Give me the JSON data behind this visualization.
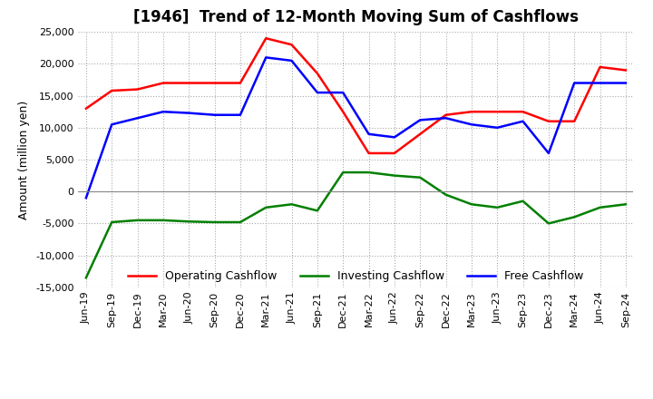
{
  "title": "[1946]  Trend of 12-Month Moving Sum of Cashflows",
  "ylabel": "Amount (million yen)",
  "ylim": [
    -15000,
    25000
  ],
  "yticks": [
    -15000,
    -10000,
    -5000,
    0,
    5000,
    10000,
    15000,
    20000,
    25000
  ],
  "x_labels": [
    "Jun-19",
    "Sep-19",
    "Dec-19",
    "Mar-20",
    "Jun-20",
    "Sep-20",
    "Dec-20",
    "Mar-21",
    "Jun-21",
    "Sep-21",
    "Dec-21",
    "Mar-22",
    "Jun-22",
    "Sep-22",
    "Dec-22",
    "Mar-23",
    "Jun-23",
    "Sep-23",
    "Dec-23",
    "Mar-24",
    "Jun-24",
    "Sep-24"
  ],
  "operating": [
    13000,
    15800,
    16000,
    17000,
    17000,
    17000,
    17000,
    24000,
    23000,
    18500,
    12500,
    6000,
    6000,
    9000,
    12000,
    12500,
    12500,
    12500,
    11000,
    11000,
    19500,
    19000
  ],
  "investing": [
    -13500,
    -4800,
    -4500,
    -4500,
    -4700,
    -4800,
    -4800,
    -2500,
    -2000,
    -3000,
    3000,
    3000,
    2500,
    2200,
    -500,
    -2000,
    -2500,
    -1500,
    -5000,
    -4000,
    -2500,
    -2000
  ],
  "free": [
    -1000,
    10500,
    11500,
    12500,
    12300,
    12000,
    12000,
    21000,
    20500,
    15500,
    15500,
    9000,
    8500,
    11200,
    11500,
    10500,
    10000,
    11000,
    6000,
    17000,
    17000,
    17000
  ],
  "operating_color": "#FF0000",
  "investing_color": "#008000",
  "free_color": "#0000FF",
  "background_color": "#FFFFFF",
  "grid_color": "#AAAAAA",
  "title_fontsize": 12,
  "label_fontsize": 9,
  "tick_fontsize": 8,
  "legend_fontsize": 9
}
